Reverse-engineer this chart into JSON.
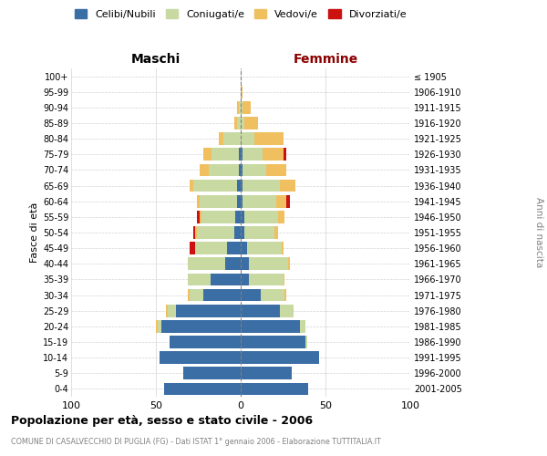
{
  "age_groups": [
    "0-4",
    "5-9",
    "10-14",
    "15-19",
    "20-24",
    "25-29",
    "30-34",
    "35-39",
    "40-44",
    "45-49",
    "50-54",
    "55-59",
    "60-64",
    "65-69",
    "70-74",
    "75-79",
    "80-84",
    "85-89",
    "90-94",
    "95-99",
    "100+"
  ],
  "birth_years": [
    "2001-2005",
    "1996-2000",
    "1991-1995",
    "1986-1990",
    "1981-1985",
    "1976-1980",
    "1971-1975",
    "1966-1970",
    "1961-1965",
    "1956-1960",
    "1951-1955",
    "1946-1950",
    "1941-1945",
    "1936-1940",
    "1931-1935",
    "1926-1930",
    "1921-1925",
    "1916-1920",
    "1911-1915",
    "1906-1910",
    "≤ 1905"
  ],
  "male": {
    "celibi": [
      45,
      34,
      48,
      42,
      47,
      38,
      22,
      18,
      9,
      8,
      4,
      3,
      2,
      2,
      1,
      1,
      0,
      0,
      0,
      0,
      0
    ],
    "coniugati": [
      0,
      0,
      0,
      0,
      2,
      5,
      8,
      13,
      22,
      19,
      22,
      20,
      22,
      26,
      18,
      16,
      10,
      2,
      1,
      0,
      0
    ],
    "vedovi": [
      0,
      0,
      0,
      0,
      1,
      1,
      1,
      0,
      0,
      0,
      1,
      1,
      2,
      2,
      5,
      5,
      3,
      2,
      1,
      0,
      0
    ],
    "divorziati": [
      0,
      0,
      0,
      0,
      0,
      0,
      0,
      0,
      0,
      3,
      1,
      2,
      0,
      0,
      0,
      0,
      0,
      0,
      0,
      0,
      0
    ]
  },
  "female": {
    "nubili": [
      40,
      30,
      46,
      38,
      35,
      23,
      12,
      5,
      5,
      4,
      2,
      2,
      1,
      1,
      1,
      1,
      0,
      0,
      0,
      0,
      0
    ],
    "coniugate": [
      0,
      0,
      0,
      1,
      3,
      8,
      14,
      20,
      23,
      20,
      18,
      20,
      20,
      22,
      14,
      12,
      8,
      2,
      1,
      0,
      0
    ],
    "vedove": [
      0,
      0,
      0,
      0,
      0,
      0,
      1,
      1,
      1,
      1,
      2,
      4,
      6,
      9,
      12,
      12,
      17,
      8,
      5,
      1,
      0
    ],
    "divorziate": [
      0,
      0,
      0,
      0,
      0,
      0,
      0,
      0,
      0,
      0,
      0,
      0,
      2,
      0,
      0,
      2,
      0,
      0,
      0,
      0,
      0
    ]
  },
  "colors": {
    "celibi": "#3a6ea5",
    "coniugati": "#c8d9a2",
    "vedovi": "#f0c060",
    "divorziati": "#cc1111"
  },
  "xlim": 100,
  "title": "Popolazione per età, sesso e stato civile - 2006",
  "subtitle": "COMUNE DI CASALVECCHIO DI PUGLIA (FG) - Dati ISTAT 1° gennaio 2006 - Elaborazione TUTTITALIA.IT",
  "ylabel_left": "Fasce di età",
  "ylabel_right": "Anni di nascita",
  "xlabel_left": "Maschi",
  "xlabel_right": "Femmine"
}
